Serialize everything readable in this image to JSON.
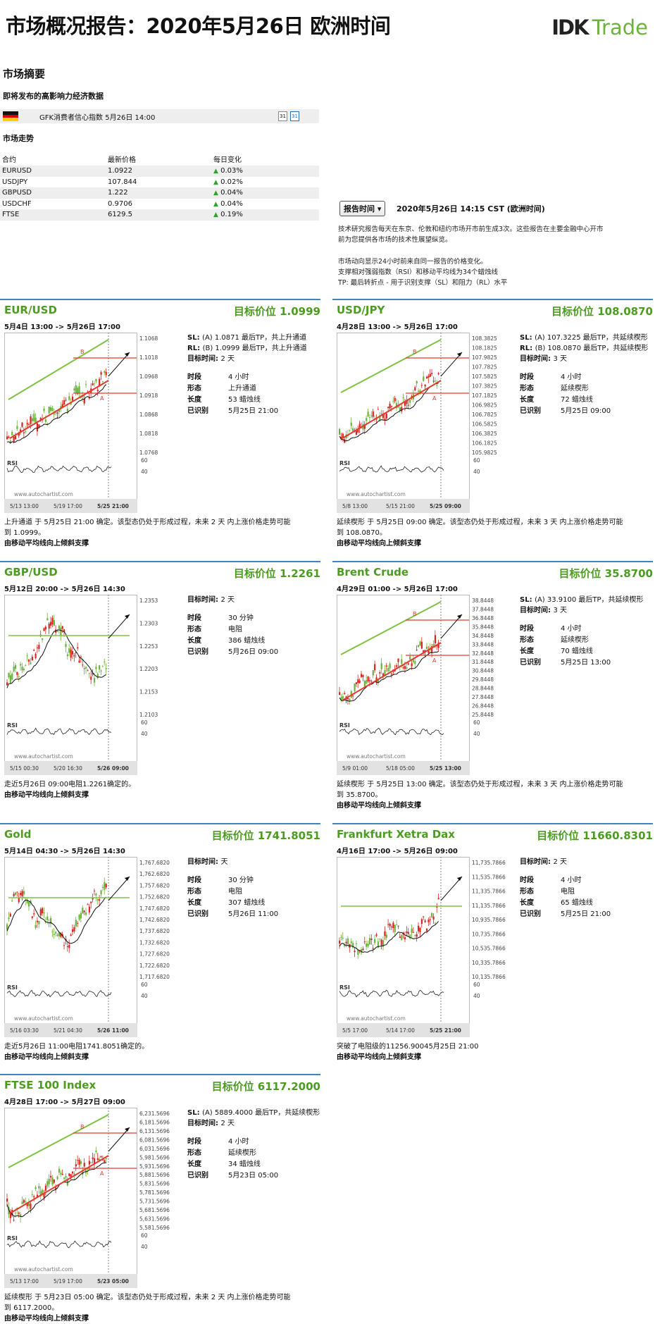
{
  "header": {
    "title": "市场概况报告：2020年5月26日 欧洲时间",
    "logo_ik": "IDK",
    "logo_trade": "Trade"
  },
  "summary": {
    "heading": "市场摘要",
    "events_heading": "即将发布的高影响力经济数据",
    "event": "GFK消费者信心指数 5月26日 14:00",
    "trend_heading": "市场走势",
    "columns": [
      "合约",
      "最新价格",
      "每日变化"
    ],
    "rows": [
      {
        "symbol": "EURUSD",
        "price": "1.0922",
        "change": "0.03%"
      },
      {
        "symbol": "USDJPY",
        "price": "107.844",
        "change": "0.02%"
      },
      {
        "symbol": "GBPUSD",
        "price": "1.222",
        "change": "0.04%"
      },
      {
        "symbol": "USDCHF",
        "price": "0.9706",
        "change": "0.04%"
      },
      {
        "symbol": "FTSE",
        "price": "6129.5",
        "change": "0.19%"
      }
    ]
  },
  "report": {
    "button": "报告时间",
    "time": "2020年5月26日 14:15 CST (欧洲时间)",
    "desc1a": "技术研究报告每天在东京、伦敦和纽约市场开市前生成3次。这些报告在主要金融中心开市",
    "desc1b": "前为您提供各市场的技术性展望纵览。",
    "desc2a": "市场动向显示24小时前来自同一报告的价格变化。",
    "desc2b": "支撑相对强弱指数（RSI）和移动平均线为34个蜡烛线",
    "desc2c": "TP: 最后转折点 - 用于识别支撑（SL）和阻力（RL）水平"
  },
  "labels": {
    "period": "时段",
    "pattern": "形态",
    "length": "长度",
    "identified": "已识别",
    "target_period": "目标时间:",
    "sl": "SL:",
    "rl": "RL:",
    "rsi": "RSI",
    "watermark": "www.autochartist.com",
    "rsi60": "60",
    "rsi40": "40"
  },
  "panels": [
    {
      "name": "EUR/USD",
      "target": "目标价位 1.0999",
      "range": "5月4日 13:00 -> 5月26日 17:00",
      "sl": "(A) 1.0871 最后TP，共上升通道",
      "rl": "(B) 1.0999 最后TP，共上升通道",
      "target_period": "2 天",
      "period": "4 小时",
      "pattern": "上升通道",
      "length": "53 蜡烛线",
      "identified": "5月25日 21:00",
      "foot1": "上升通道 于 5月25日 21:00 确定。该型态仍处于形成过程，未来 2 天 内上涨价格走势可能",
      "foot1b": "到 1.0999。",
      "foot2": "由移动平均线向上倾斜支撑",
      "yticks": [
        "1.1068",
        "1.1018",
        "1.0968",
        "1.0918",
        "1.0868",
        "1.0818",
        "1.0768"
      ],
      "xticks": [
        "5/13 13:00",
        "5/19 17:00",
        "5/25 21:00"
      ]
    },
    {
      "name": "USD/JPY",
      "target": "目标价位 108.0870",
      "range": "4月28日 13:00 -> 5月26日 17:00",
      "sl": "(A) 107.3225 最后TP，共延续楔形",
      "rl": "(B) 108.0870 最后TP，共延续楔形",
      "target_period": "3 天",
      "period": "4 小时",
      "pattern": "延续楔形",
      "length": "72 蜡烛线",
      "identified": "5月25日 09:00",
      "foot1": "延续楔形 于 5月25日 09:00 确定。该型态仍处于形成过程，未来 3 天 内上涨价格走势可能",
      "foot1b": "到 108.0870。",
      "foot2": "由移动平均线向上倾斜支撑",
      "yticks": [
        "108.3825",
        "108.1825",
        "107.9825",
        "107.7825",
        "107.5825",
        "107.3825",
        "107.1825",
        "106.9825",
        "106.7825",
        "106.5825",
        "106.3825",
        "106.1825",
        "105.9825"
      ],
      "xticks": [
        "5/8 13:00",
        "5/15 21:00",
        "5/25 09:00"
      ]
    },
    {
      "name": "GBP/USD",
      "target": "目标价位 1.2261",
      "range": "5月12日 20:00 -> 5月26日 14:30",
      "target_period": "2 天",
      "period": "30 分钟",
      "pattern": "电阻",
      "length": "386 蜡烛线",
      "identified": "5月26日 09:00",
      "foot1": "走近5月26日 09:00电阻1.2261确定的。",
      "foot1b": "",
      "foot2": "由移动平均线向上倾斜支撑",
      "yticks": [
        "1.2353",
        "1.2303",
        "1.2253",
        "1.2203",
        "1.2153",
        "1.2103"
      ],
      "xticks": [
        "5/15 00:30",
        "5/20 16:30",
        "5/26 09:00"
      ]
    },
    {
      "name": "Brent Crude",
      "target": "目标价位 35.8700",
      "range": "4月29日 01:00 -> 5月26日 17:00",
      "sl": "(A) 33.9100 最后TP，共延续楔形",
      "target_period": "3 天",
      "period": "4 小时",
      "pattern": "延续楔形",
      "length": "70 蜡烛线",
      "identified": "5月25日 13:00",
      "foot1": "延续楔形 于 5月25日 13:00 确定。该型态仍处于形成过程，未来 3 天 内上涨价格走势可能",
      "foot1b": "到 35.8700。",
      "foot2": "由移动平均线向上倾斜支撑",
      "yticks": [
        "38.8448",
        "37.8448",
        "36.8448",
        "35.8448",
        "34.8448",
        "33.8448",
        "32.8448",
        "31.8448",
        "30.8448",
        "29.8448",
        "28.8448",
        "27.8448",
        "26.8448",
        "25.8448"
      ],
      "xticks": [
        "5/9 01:00",
        "5/18 05:00",
        "5/25 13:00"
      ]
    },
    {
      "name": "Gold",
      "target": "目标价位 1741.8051",
      "range": "5月14日 04:30 -> 5月26日 14:30",
      "target_period": "天",
      "period": "30 分钟",
      "pattern": "电阻",
      "length": "307 蜡烛线",
      "identified": "5月26日 11:00",
      "foot1": "走近5月26日 11:00电阻1741.8051确定的。",
      "foot1b": "",
      "foot2": "由移动平均线向上倾斜支撑",
      "yticks": [
        "1,767.6820",
        "1,762.6820",
        "1,757.6820",
        "1,752.6820",
        "1,747.6820",
        "1,742.6820",
        "1,737.6820",
        "1,732.6820",
        "1,727.6820",
        "1,722.6820",
        "1,717.6820"
      ],
      "xticks": [
        "5/16 03:30",
        "5/21 04:30",
        "5/26 11:00"
      ]
    },
    {
      "name": "Frankfurt Xetra Dax",
      "target": "目标价位 11660.8301",
      "range": "4月16日 17:00 -> 5月26日 09:00",
      "target_period": "2 天",
      "period": "4 小时",
      "pattern": "电阻",
      "length": "65 蜡烛线",
      "identified": "5月25日 21:00",
      "foot1": "突破了电阻级的11256.90045月25日 21:00",
      "foot1b": "",
      "foot2": "由移动平均线向上倾斜支撑",
      "yticks": [
        "11,735.7866",
        "11,535.7866",
        "11,335.7866",
        "11,135.7866",
        "10,935.7866",
        "10,735.7866",
        "10,535.7866",
        "10,335.7866",
        "10,135.7866"
      ],
      "xticks": [
        "5/5 17:00",
        "5/14 17:00",
        "5/25 21:00"
      ]
    },
    {
      "name": "FTSE 100 Index",
      "target": "目标价位 6117.2000",
      "range": "4月28日 17:00 -> 5月27日 09:00",
      "sl": "(A) 5889.4000 最后TP，共延续楔形",
      "target_period": "2 天",
      "period": "4 小时",
      "pattern": "延续楔形",
      "length": "34 蜡烛线",
      "identified": "5月23日 05:00",
      "foot1": "延续楔形 于 5月23日 05:00 确定。该型态仍处于形成过程，未来 2 天 内上涨价格走势可能",
      "foot1b": "到 6117.2000。",
      "foot2": "由移动平均线向上倾斜支撑",
      "yticks": [
        "6,231.5696",
        "6,181.5696",
        "6,131.5696",
        "6,081.5696",
        "6,031.5696",
        "5,981.5696",
        "5,931.5696",
        "5,881.5696",
        "5,831.5696",
        "5,781.5696",
        "5,731.5696",
        "5,681.5696",
        "5,631.5696",
        "5,581.5696"
      ],
      "xticks": [
        "5/13 17:00",
        "5/19 17:00",
        "5/23 05:00"
      ]
    }
  ],
  "colors": {
    "accent_green": "#4b9c1f",
    "separator_blue": "#3a86c5",
    "candle_up": "#6cb33e",
    "candle_down": "#d9251d",
    "channel_green": "#7fc241",
    "level_red": "#e23b2e"
  }
}
